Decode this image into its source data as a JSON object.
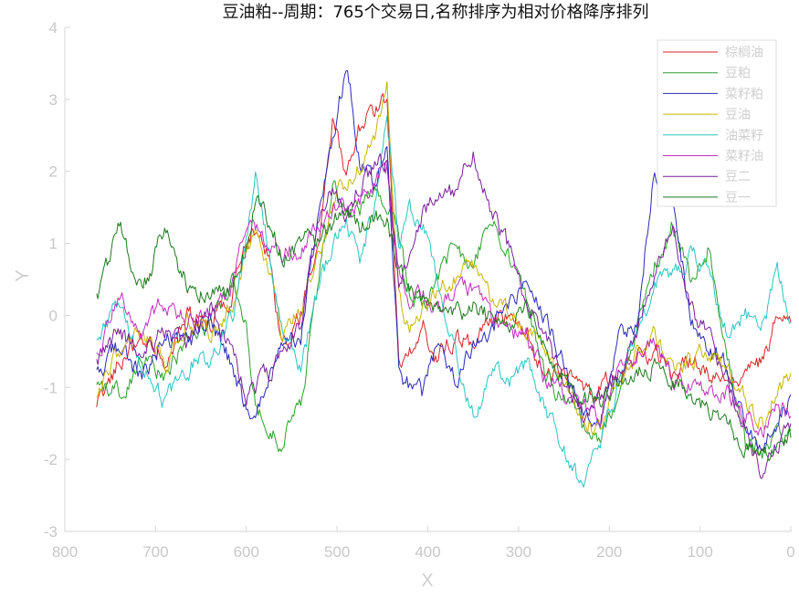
{
  "chart_data": {
    "type": "line",
    "title": "豆油粕--周期：765个交易日,名称排序为相对价格降序排列",
    "xlabel": "X",
    "ylabel": "Y",
    "xlim": [
      800,
      0
    ],
    "ylim": [
      -3,
      4
    ],
    "x_reversed": true,
    "xticks": [
      "800",
      "700",
      "600",
      "500",
      "400",
      "300",
      "200",
      "100",
      "0"
    ],
    "yticks": [
      "-3",
      "-2",
      "-1",
      "0",
      "1",
      "2",
      "3",
      "4"
    ],
    "legend_position": "top-right",
    "grid": false,
    "x_range": [
      765,
      0
    ],
    "series": [
      {
        "name": "棕榈油",
        "color": "#d62728",
        "x": [
          765,
          740,
          715,
          690,
          665,
          640,
          615,
          600,
          590,
          575,
          560,
          540,
          520,
          505,
          490,
          475,
          460,
          445,
          432,
          420,
          405,
          390,
          370,
          350,
          330,
          310,
          290,
          270,
          250,
          230,
          210,
          190,
          170,
          150,
          130,
          110,
          90,
          70,
          50,
          30,
          15,
          0
        ],
        "values": [
          -1.3,
          -0.6,
          -0.3,
          -0.6,
          0.0,
          -0.2,
          0.3,
          1.1,
          1.2,
          0.8,
          -0.5,
          0.0,
          1.0,
          2.7,
          2.0,
          2.6,
          2.8,
          3.0,
          -0.6,
          -0.5,
          -0.2,
          -0.6,
          -0.3,
          -0.4,
          -0.1,
          0.0,
          -0.3,
          -0.8,
          -0.8,
          -1.1,
          -1.0,
          -0.8,
          -0.6,
          -0.5,
          -0.8,
          -0.6,
          -0.8,
          -1.0,
          -0.8,
          -0.6,
          0.0,
          -0.1
        ]
      },
      {
        "name": "豆粕",
        "color": "#2ca02c",
        "x": [
          765,
          740,
          715,
          690,
          665,
          640,
          615,
          600,
          590,
          575,
          560,
          540,
          520,
          505,
          490,
          475,
          460,
          445,
          432,
          420,
          405,
          390,
          370,
          350,
          330,
          310,
          290,
          270,
          250,
          230,
          210,
          190,
          170,
          150,
          130,
          110,
          90,
          70,
          50,
          30,
          15,
          0
        ],
        "values": [
          -1.0,
          -1.1,
          -0.6,
          -0.9,
          -0.3,
          -0.1,
          0.5,
          -0.2,
          -1.3,
          -1.6,
          -1.8,
          -1.2,
          0.5,
          1.8,
          1.5,
          1.5,
          1.7,
          1.6,
          1.2,
          0.3,
          0.1,
          0.5,
          1.0,
          0.6,
          1.4,
          0.8,
          0.1,
          -0.8,
          -1.2,
          -1.5,
          -1.7,
          -1.1,
          -0.2,
          0.7,
          1.3,
          0.4,
          1.0,
          -0.6,
          -1.8,
          -1.9,
          -1.7,
          -1.6
        ]
      },
      {
        "name": "菜籽粕",
        "color": "#2a2ab8",
        "x": [
          765,
          740,
          715,
          690,
          665,
          640,
          615,
          600,
          590,
          575,
          560,
          540,
          520,
          505,
          490,
          475,
          460,
          445,
          432,
          420,
          405,
          390,
          370,
          350,
          330,
          310,
          290,
          270,
          250,
          230,
          210,
          190,
          170,
          150,
          130,
          110,
          90,
          70,
          50,
          30,
          15,
          0
        ],
        "values": [
          -0.8,
          -0.4,
          -0.9,
          -0.3,
          -0.4,
          -0.1,
          -0.7,
          -1.3,
          -1.5,
          -0.9,
          -0.4,
          -0.3,
          1.5,
          2.4,
          3.5,
          2.2,
          1.8,
          2.3,
          -0.8,
          -1.0,
          -1.1,
          -0.4,
          -0.9,
          -0.4,
          -0.2,
          0.2,
          0.4,
          0.0,
          -0.7,
          -1.3,
          -1.5,
          -0.3,
          -0.1,
          2.0,
          1.6,
          -0.1,
          -0.5,
          -0.7,
          -1.5,
          -1.8,
          -1.5,
          -1.1
        ]
      },
      {
        "name": "豆油",
        "color": "#c8b400",
        "x": [
          765,
          740,
          715,
          690,
          665,
          640,
          615,
          600,
          590,
          575,
          560,
          540,
          520,
          505,
          490,
          475,
          460,
          445,
          432,
          420,
          405,
          390,
          370,
          350,
          330,
          310,
          290,
          270,
          250,
          230,
          210,
          190,
          170,
          150,
          130,
          110,
          90,
          70,
          50,
          30,
          15,
          0
        ],
        "values": [
          -1.2,
          -0.5,
          -0.2,
          -0.7,
          -0.1,
          -0.2,
          0.1,
          0.9,
          1.1,
          0.6,
          -0.4,
          0.1,
          0.9,
          1.5,
          1.9,
          2.1,
          2.4,
          3.1,
          0.2,
          -0.2,
          0.1,
          0.3,
          0.5,
          0.7,
          0.2,
          0.0,
          -0.2,
          -0.5,
          -1.0,
          -1.4,
          -1.6,
          -0.9,
          -0.6,
          -0.3,
          -0.7,
          -0.6,
          -0.5,
          -0.7,
          -1.2,
          -1.5,
          -1.0,
          -0.8
        ]
      },
      {
        "name": "油菜籽",
        "color": "#2bc4c4",
        "x": [
          765,
          740,
          715,
          690,
          665,
          640,
          615,
          600,
          590,
          575,
          560,
          540,
          520,
          505,
          490,
          475,
          460,
          445,
          432,
          420,
          405,
          390,
          370,
          350,
          330,
          310,
          290,
          270,
          250,
          230,
          210,
          190,
          170,
          150,
          130,
          110,
          90,
          70,
          50,
          30,
          15,
          0
        ],
        "values": [
          -0.4,
          0.2,
          -0.8,
          -1.2,
          -0.7,
          -0.6,
          0.0,
          1.0,
          1.9,
          0.9,
          -0.2,
          -0.7,
          0.4,
          1.0,
          1.3,
          0.8,
          1.4,
          2.8,
          1.0,
          1.5,
          1.2,
          0.6,
          -0.5,
          -1.4,
          -0.8,
          -0.9,
          -0.7,
          -1.3,
          -1.8,
          -2.4,
          -1.8,
          -0.9,
          -0.2,
          0.4,
          0.5,
          0.9,
          0.6,
          -0.2,
          0.0,
          -0.1,
          0.6,
          -0.1
        ]
      },
      {
        "name": "菜籽油",
        "color": "#c030c0",
        "x": [
          765,
          740,
          715,
          690,
          665,
          640,
          615,
          600,
          590,
          575,
          560,
          540,
          520,
          505,
          490,
          475,
          460,
          445,
          432,
          420,
          405,
          390,
          370,
          350,
          330,
          310,
          290,
          270,
          250,
          230,
          210,
          190,
          170,
          150,
          130,
          110,
          90,
          70,
          50,
          30,
          15,
          0
        ],
        "values": [
          -0.6,
          0.3,
          -0.2,
          0.2,
          -0.1,
          0.0,
          0.4,
          1.2,
          1.3,
          1.0,
          0.9,
          0.9,
          1.2,
          1.5,
          1.4,
          1.6,
          1.8,
          2.0,
          0.6,
          0.2,
          0.3,
          0.0,
          0.3,
          0.4,
          0.0,
          -0.2,
          -0.3,
          -0.9,
          -1.1,
          -1.3,
          -1.4,
          -0.8,
          -0.6,
          -0.4,
          -0.9,
          -0.9,
          -1.0,
          -1.1,
          -1.4,
          -1.6,
          -1.3,
          -1.4
        ]
      },
      {
        "name": "豆二",
        "color": "#7a1f9a",
        "x": [
          765,
          740,
          715,
          690,
          665,
          640,
          615,
          600,
          590,
          575,
          560,
          540,
          520,
          505,
          490,
          475,
          460,
          445,
          432,
          420,
          405,
          390,
          370,
          350,
          330,
          310,
          290,
          270,
          250,
          230,
          210,
          190,
          170,
          150,
          130,
          110,
          90,
          70,
          50,
          30,
          15,
          0
        ],
        "values": [
          -0.7,
          -0.2,
          -0.6,
          -0.2,
          -0.4,
          0.1,
          -0.5,
          -1.1,
          -1.0,
          -0.8,
          -0.6,
          -0.1,
          1.3,
          1.8,
          1.4,
          1.8,
          2.0,
          2.2,
          0.4,
          0.8,
          1.4,
          1.6,
          1.7,
          2.3,
          1.4,
          0.9,
          0.2,
          -0.3,
          -0.9,
          -1.4,
          -1.2,
          -0.8,
          -0.2,
          0.6,
          1.3,
          0.1,
          -0.3,
          -0.8,
          -1.6,
          -2.2,
          -1.8,
          -1.5
        ]
      },
      {
        "name": "豆一",
        "color": "#1d7a1d",
        "x": [
          765,
          740,
          715,
          690,
          665,
          640,
          615,
          600,
          590,
          575,
          560,
          540,
          520,
          505,
          490,
          475,
          460,
          445,
          432,
          420,
          405,
          390,
          370,
          350,
          330,
          310,
          290,
          270,
          250,
          230,
          210,
          190,
          170,
          150,
          130,
          110,
          90,
          70,
          50,
          30,
          15,
          0
        ],
        "values": [
          0.2,
          1.3,
          0.3,
          1.2,
          0.4,
          0.3,
          0.4,
          1.0,
          1.7,
          1.3,
          0.8,
          1.0,
          1.1,
          1.3,
          1.5,
          1.2,
          1.4,
          1.3,
          0.6,
          0.4,
          0.2,
          0.1,
          0.0,
          0.1,
          0.0,
          -0.1,
          0.1,
          -0.4,
          -0.9,
          -1.1,
          -1.2,
          -0.9,
          -0.8,
          -0.7,
          -0.9,
          -1.1,
          -1.3,
          -1.5,
          -1.8,
          -1.9,
          -1.8,
          -1.7
        ]
      }
    ]
  }
}
